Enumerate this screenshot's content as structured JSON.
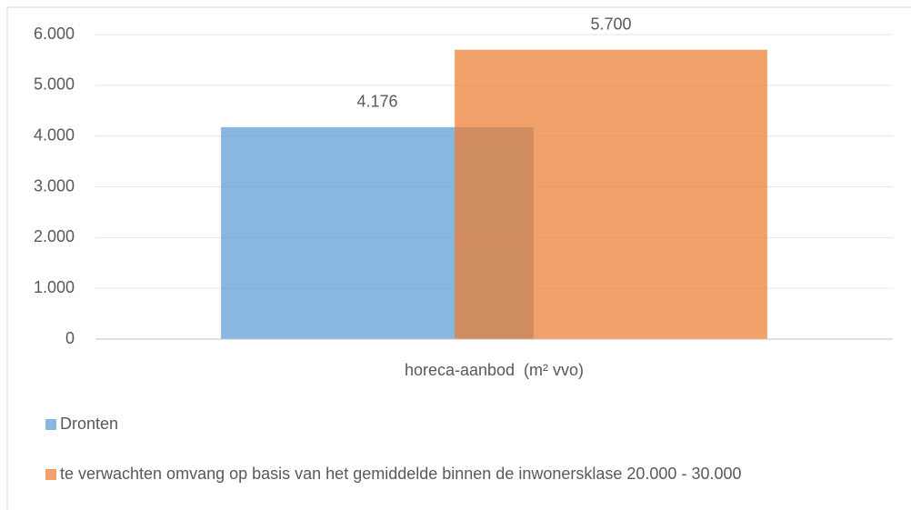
{
  "chart_data": {
    "type": "bar",
    "categories": [
      "horeca-aanbod  (m² vvo)"
    ],
    "series": [
      {
        "name": "Dronten",
        "color": "#5b9bd5",
        "values": [
          4176
        ],
        "value_labels": [
          "4.176"
        ]
      },
      {
        "name": "te verwachten omvang op basis van het gemiddelde binnen de inwonersklase 20.000 - 30.000",
        "color": "#ed7d31",
        "values": [
          5700
        ],
        "value_labels": [
          "5.700"
        ]
      }
    ],
    "ylim": [
      0,
      6000
    ],
    "yticks": [
      0,
      {
        "value": 1000,
        "label": "1.000"
      },
      {
        "value": 2000,
        "label": "2.000"
      },
      {
        "value": 3000,
        "label": "3.000"
      },
      {
        "value": 4000,
        "label": "4.000"
      },
      {
        "value": 5000,
        "label": "5.000"
      },
      {
        "value": 6000,
        "label": "6.000"
      }
    ],
    "grid": true,
    "legend": "bottom"
  }
}
